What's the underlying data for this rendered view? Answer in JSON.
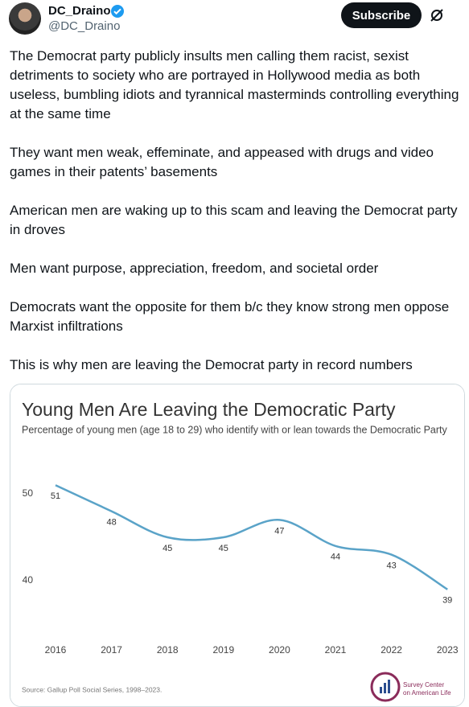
{
  "post": {
    "name": "DC_Draino",
    "handle": "@DC_Draino",
    "subscribe": "Subscribe",
    "paragraphs": [
      "The Democrat party publicly insults men calling them racist, sexist detriments to society who are portrayed in Hollywood media as both useless, bumbling idiots and tyrannical masterminds controlling everything at the same time",
      "They want men weak, effeminate, and appeased with drugs and video games in their patents’ basements",
      "American men are waking up to this scam and leaving the Democrat party in droves",
      "Men want purpose, appreciation, freedom, and societal order",
      "Democrats want the opposite for them b/c they know strong men oppose Marxist infiltrations",
      "This is why men are leaving the Democrat party in record numbers"
    ]
  },
  "chart_data": {
    "type": "line",
    "title": "Young Men Are Leaving the Democratic Party",
    "subtitle": "Percentage of young men (age 18 to 29) who identify with or lean towards the Democratic Party",
    "categories": [
      "2016",
      "2017",
      "2018",
      "2019",
      "2020",
      "2021",
      "2022",
      "2023"
    ],
    "values": [
      51,
      48,
      45,
      45,
      47,
      44,
      43,
      39
    ],
    "color": "#5aa3c8",
    "ylim": [
      36,
      53
    ],
    "yticks": [
      50,
      40
    ],
    "grid": false,
    "source": "Source: Gallup Poll Social Series, 1998–2023.",
    "logo": [
      "Survey Center",
      "on American Life"
    ]
  }
}
